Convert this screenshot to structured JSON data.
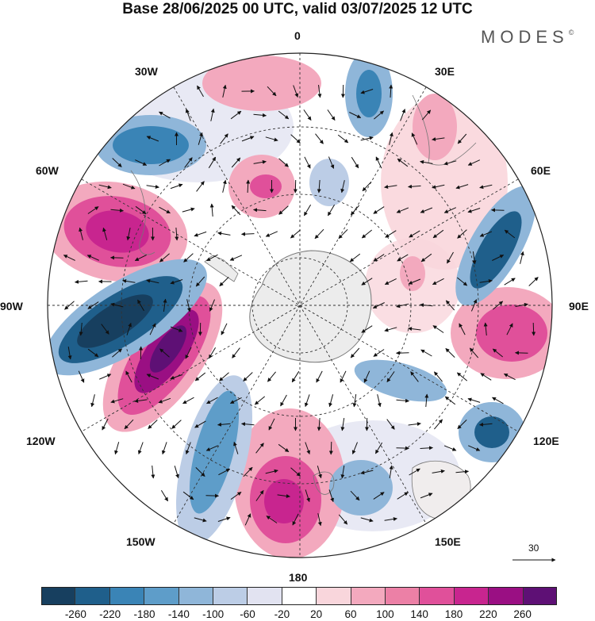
{
  "title": "Base 28/06/2025 00 UTC, valid 03/07/2025 12 UTC",
  "brand": "MODES",
  "brand_mark": "©",
  "longitude_labels": {
    "lon_0": "0",
    "lon_30e": "30E",
    "lon_60e": "60E",
    "lon_90e": "90E",
    "lon_120e": "120E",
    "lon_150e": "150E",
    "lon_180": "180",
    "lon_150w": "150W",
    "lon_120w": "120W",
    "lon_90w": "90W",
    "lon_60w": "60W",
    "lon_30w": "30W"
  },
  "reference_vector": "30",
  "colorbar": {
    "colors": [
      "#173f5f",
      "#1f5f8b",
      "#3a84b6",
      "#5e9dc9",
      "#8fb6d9",
      "#bccde6",
      "#e2e3f1",
      "#ffffff",
      "#f9d6dc",
      "#f3a9be",
      "#ec80a6",
      "#e0509a",
      "#c8258f",
      "#9a0f83",
      "#5e1075"
    ],
    "tick_labels": [
      "-260",
      "-220",
      "-180",
      "-140",
      "-100",
      "-60",
      "-20",
      "20",
      "60",
      "100",
      "140",
      "180",
      "220",
      "260"
    ]
  },
  "colors": {
    "land": "#ececec",
    "coast": "#777777",
    "grid": "#333333"
  }
}
